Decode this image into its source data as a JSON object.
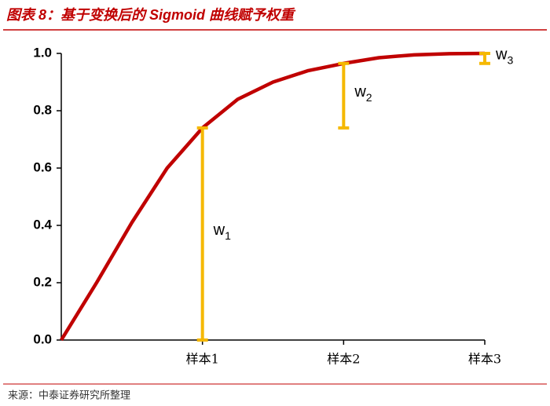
{
  "chart_data": {
    "type": "line",
    "title": "图表 8：基于变换后的 Sigmoid 曲线赋予权重",
    "source": "来源：中泰证券研究所整理",
    "x": [
      0,
      0.25,
      0.5,
      0.75,
      1,
      1.25,
      1.5,
      1.75,
      2,
      2.25,
      2.5,
      2.75,
      3
    ],
    "values": [
      0,
      0.2,
      0.41,
      0.6,
      0.74,
      0.84,
      0.9,
      0.94,
      0.965,
      0.985,
      0.995,
      0.999,
      1.0
    ],
    "color": "#c00000",
    "xlim": [
      0,
      3
    ],
    "xticks": [
      {
        "value": 1,
        "label": "样本1"
      },
      {
        "value": 2,
        "label": "样本2"
      },
      {
        "value": 3,
        "label": "样本3"
      }
    ],
    "ylim": [
      0,
      1
    ],
    "yticks": [
      {
        "value": 0,
        "label": "0.0"
      },
      {
        "value": 0.2,
        "label": "0.2"
      },
      {
        "value": 0.4,
        "label": "0.4"
      },
      {
        "value": 0.6,
        "label": "0.6"
      },
      {
        "value": 0.8,
        "label": "0.8"
      },
      {
        "value": 1,
        "label": "1.0"
      }
    ],
    "weight_color": "#f5b800",
    "annotations": [
      {
        "label": "w",
        "sub": "1",
        "x": 1,
        "low": 0,
        "high": 0.74
      },
      {
        "label": "w",
        "sub": "2",
        "x": 2,
        "low": 0.74,
        "high": 0.965
      },
      {
        "label": "w",
        "sub": "3",
        "x": 3,
        "low": 0.965,
        "high": 1.0
      }
    ]
  }
}
